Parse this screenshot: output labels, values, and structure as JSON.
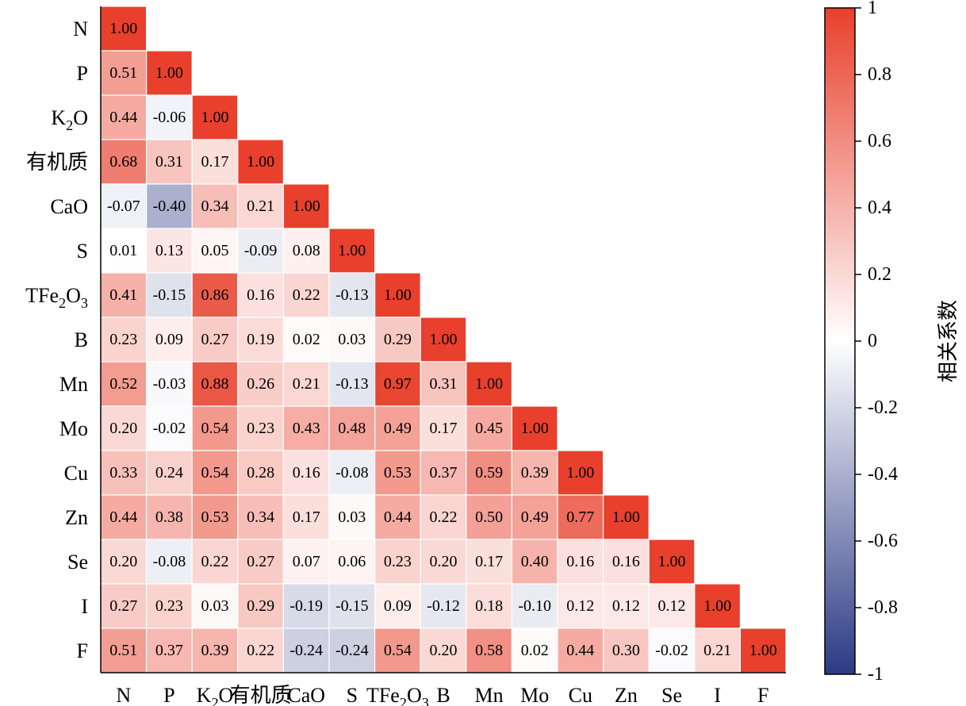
{
  "chart_data": {
    "type": "heatmap",
    "title": "",
    "variables": [
      "N",
      "P",
      "K2O",
      "有机质",
      "CaO",
      "S",
      "TFe2O3",
      "B",
      "Mn",
      "Mo",
      "Cu",
      "Zn",
      "Se",
      "I",
      "F"
    ],
    "value_format": "fixed-2",
    "lower_triangle_matrix": [
      [
        1.0
      ],
      [
        0.51,
        1.0
      ],
      [
        0.44,
        -0.06,
        1.0
      ],
      [
        0.68,
        0.31,
        0.17,
        1.0
      ],
      [
        -0.07,
        -0.4,
        0.34,
        0.21,
        1.0
      ],
      [
        0.01,
        0.13,
        0.05,
        -0.09,
        0.08,
        1.0
      ],
      [
        0.41,
        -0.15,
        0.86,
        0.16,
        0.22,
        -0.13,
        1.0
      ],
      [
        0.23,
        0.09,
        0.27,
        0.19,
        0.02,
        0.03,
        0.29,
        1.0
      ],
      [
        0.52,
        -0.03,
        0.88,
        0.26,
        0.21,
        -0.13,
        0.97,
        0.31,
        1.0
      ],
      [
        0.2,
        -0.02,
        0.54,
        0.23,
        0.43,
        0.48,
        0.49,
        0.17,
        0.45,
        1.0
      ],
      [
        0.33,
        0.24,
        0.54,
        0.28,
        0.16,
        -0.08,
        0.53,
        0.37,
        0.59,
        0.39,
        1.0
      ],
      [
        0.44,
        0.38,
        0.53,
        0.34,
        0.17,
        0.03,
        0.44,
        0.22,
        0.5,
        0.49,
        0.77,
        1.0
      ],
      [
        0.2,
        -0.08,
        0.22,
        0.27,
        0.07,
        0.06,
        0.23,
        0.2,
        0.17,
        0.4,
        0.16,
        0.16,
        1.0
      ],
      [
        0.27,
        0.23,
        0.03,
        0.29,
        -0.19,
        -0.15,
        0.09,
        -0.12,
        0.18,
        -0.1,
        0.12,
        0.12,
        0.12,
        1.0
      ],
      [
        0.51,
        0.37,
        0.39,
        0.22,
        -0.24,
        -0.24,
        0.54,
        0.2,
        0.58,
        0.02,
        0.44,
        0.3,
        -0.02,
        0.21,
        1.0
      ]
    ],
    "colorbar": {
      "title": "相关系数",
      "range": [
        -1,
        1
      ],
      "ticks": [
        "1",
        "0.8",
        "0.6",
        "0.4",
        "0.2",
        "0",
        "-0.2",
        "-0.4",
        "-0.6",
        "-0.8",
        "-1"
      ],
      "colors": {
        "low": "#2b3a84",
        "mid": "#ffffff",
        "high": "#e8402c"
      }
    }
  }
}
